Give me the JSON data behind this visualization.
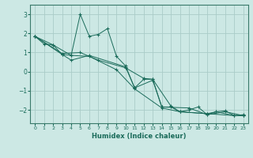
{
  "xlabel": "Humidex (Indice chaleur)",
  "background_color": "#cce8e4",
  "grid_color": "#aaccc8",
  "line_color": "#1a6b5a",
  "spine_color": "#3a7a6a",
  "xlim": [
    -0.5,
    23.5
  ],
  "ylim": [
    -2.7,
    3.5
  ],
  "yticks": [
    -2,
    -1,
    0,
    1,
    2,
    3
  ],
  "xticks": [
    0,
    1,
    2,
    3,
    4,
    5,
    6,
    7,
    8,
    9,
    10,
    11,
    12,
    13,
    14,
    15,
    16,
    17,
    18,
    19,
    20,
    21,
    22,
    23
  ],
  "series1": [
    [
      0,
      1.85
    ],
    [
      1,
      1.45
    ],
    [
      2,
      1.4
    ],
    [
      3,
      0.9
    ],
    [
      4,
      0.85
    ],
    [
      5,
      3.0
    ],
    [
      6,
      1.85
    ],
    [
      7,
      1.95
    ],
    [
      8,
      2.25
    ],
    [
      9,
      0.8
    ],
    [
      10,
      0.3
    ],
    [
      11,
      -0.85
    ],
    [
      12,
      -0.4
    ],
    [
      13,
      -0.4
    ],
    [
      14,
      -1.85
    ],
    [
      15,
      -1.85
    ],
    [
      16,
      -2.1
    ],
    [
      17,
      -2.0
    ],
    [
      18,
      -1.85
    ],
    [
      19,
      -2.25
    ],
    [
      20,
      -2.1
    ],
    [
      21,
      -2.05
    ],
    [
      22,
      -2.3
    ],
    [
      23,
      -2.3
    ]
  ],
  "series2": [
    [
      0,
      1.85
    ],
    [
      3,
      0.9
    ],
    [
      4,
      0.6
    ],
    [
      6,
      0.85
    ],
    [
      10,
      0.25
    ],
    [
      11,
      -0.85
    ],
    [
      13,
      -0.45
    ],
    [
      14,
      -1.85
    ],
    [
      17,
      -1.9
    ],
    [
      19,
      -2.25
    ],
    [
      21,
      -2.1
    ],
    [
      23,
      -2.3
    ]
  ],
  "series3": [
    [
      0,
      1.85
    ],
    [
      3,
      0.95
    ],
    [
      5,
      1.0
    ],
    [
      7,
      0.6
    ],
    [
      10,
      0.2
    ],
    [
      12,
      -0.35
    ],
    [
      13,
      -0.4
    ],
    [
      15,
      -1.8
    ],
    [
      16,
      -2.1
    ],
    [
      19,
      -2.2
    ],
    [
      20,
      -2.1
    ],
    [
      22,
      -2.3
    ],
    [
      23,
      -2.25
    ]
  ],
  "series4": [
    [
      0,
      1.85
    ],
    [
      2,
      1.4
    ],
    [
      4,
      0.85
    ],
    [
      6,
      0.8
    ],
    [
      9,
      0.1
    ],
    [
      11,
      -0.9
    ],
    [
      14,
      -1.9
    ],
    [
      16,
      -2.1
    ],
    [
      19,
      -2.2
    ],
    [
      22,
      -2.3
    ],
    [
      23,
      -2.3
    ]
  ]
}
